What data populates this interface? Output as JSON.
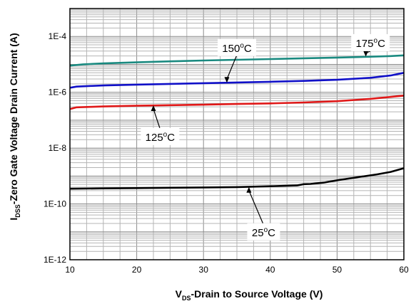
{
  "chart_data": {
    "type": "line",
    "title": "",
    "xlabel": {
      "main": "V",
      "sub": "DS",
      "rest": "-Drain to Source Voltage (V)"
    },
    "ylabel": {
      "main": "I",
      "sub": "DSS",
      "rest": "-Zero Gate Voltage Drain Current (A)"
    },
    "xlim": [
      10,
      60
    ],
    "ylim": [
      1e-12,
      0.001
    ],
    "yscale": "log",
    "grid": true,
    "x_ticks": [
      "10",
      "20",
      "30",
      "40",
      "50",
      "60"
    ],
    "y_ticks": [
      "1E-4",
      "1E-6",
      "1E-8",
      "1E-10",
      "1E-12"
    ],
    "series": [
      {
        "name": "175°C",
        "label": {
          "value": "175",
          "unit": "C"
        },
        "color": "#1a8a80",
        "x": [
          10,
          12,
          15,
          20,
          25,
          30,
          35,
          40,
          45,
          50,
          55,
          58,
          60
        ],
        "y": [
          9e-06,
          1e-05,
          1.08e-05,
          1.18e-05,
          1.28e-05,
          1.38e-05,
          1.46e-05,
          1.55e-05,
          1.65e-05,
          1.75e-05,
          1.88e-05,
          1.98e-05,
          2.1e-05
        ]
      },
      {
        "name": "150°C",
        "label": {
          "value": "150",
          "unit": "C"
        },
        "color": "#1010c8",
        "x": [
          10,
          11,
          13,
          15,
          20,
          25,
          30,
          35,
          40,
          45,
          50,
          55,
          58,
          60
        ],
        "y": [
          1.45e-06,
          1.6e-06,
          1.68e-06,
          1.75e-06,
          1.88e-06,
          2e-06,
          2.12e-06,
          2.24e-06,
          2.38e-06,
          2.55e-06,
          2.8e-06,
          3.3e-06,
          4e-06,
          5e-06
        ]
      },
      {
        "name": "125°C",
        "label": {
          "value": "125",
          "unit": "C"
        },
        "color": "#e01818",
        "x": [
          10,
          11,
          13,
          15,
          20,
          25,
          30,
          35,
          40,
          45,
          50,
          55,
          58,
          60
        ],
        "y": [
          2.5e-07,
          2.9e-07,
          3e-07,
          3.1e-07,
          3.3e-07,
          3.45e-07,
          3.6e-07,
          3.8e-07,
          4e-07,
          4.3e-07,
          4.8e-07,
          5.8e-07,
          6.8e-07,
          7.6e-07
        ]
      },
      {
        "name": "25°C",
        "label": {
          "value": "25",
          "unit": "C"
        },
        "color": "#000000",
        "x": [
          10,
          15,
          20,
          25,
          30,
          35,
          40,
          44,
          45,
          46,
          48,
          50,
          53,
          56,
          58,
          60
        ],
        "y": [
          3.5e-10,
          3.6e-10,
          3.7e-10,
          3.8e-10,
          3.9e-10,
          4e-10,
          4.3e-10,
          4.6e-10,
          5.1e-10,
          5.2e-10,
          5.8e-10,
          7e-10,
          9e-10,
          1.15e-09,
          1.4e-09,
          1.9e-09
        ]
      }
    ]
  }
}
